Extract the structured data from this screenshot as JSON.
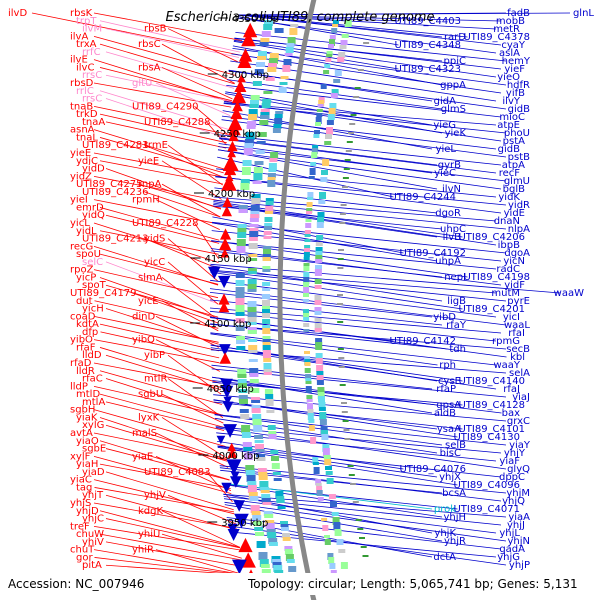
{
  "title": "Escherichia coli UTI89, complete genome",
  "footer": {
    "accession": "Accession: NC_007946",
    "stats": "Topology: circular; Length: 5,065,741 bp; Genes: 5,131"
  },
  "colors": {
    "forward": "#ff0000",
    "reverse": "#0000cc",
    "rna": "#ff88cc",
    "other": "#00bbcc",
    "backbone": "#888888"
  },
  "ticks": [
    "4350 kbp",
    "4300 kbp",
    "4250 kbp",
    "4200 kbp",
    "4150 kbp",
    "4100 kbp",
    "4050 kbp",
    "4000 kbp",
    "3950 kbp"
  ],
  "left_labels": [
    {
      "t": "ilvD",
      "c": "forward"
    },
    {
      "t": "rbsK",
      "c": "forward"
    },
    {
      "t": "trpT",
      "c": "rna"
    },
    {
      "t": "ilvM",
      "c": "rna"
    },
    {
      "t": "rbsB",
      "c": "forward"
    },
    {
      "t": "ilvA",
      "c": "forward"
    },
    {
      "t": "trxA",
      "c": "forward"
    },
    {
      "t": "rbsC",
      "c": "forward"
    },
    {
      "t": "rrfC",
      "c": "rna"
    },
    {
      "t": "ilvE",
      "c": "forward"
    },
    {
      "t": "ilvC",
      "c": "forward"
    },
    {
      "t": "rbsA",
      "c": "forward"
    },
    {
      "t": "rrsC",
      "c": "rna"
    },
    {
      "t": "rbsD",
      "c": "forward"
    },
    {
      "t": "gltU",
      "c": "rna"
    },
    {
      "t": "rrlC",
      "c": "rna"
    },
    {
      "t": "rrsC",
      "c": "rna"
    },
    {
      "t": "tnaB",
      "c": "forward"
    },
    {
      "t": "UTI89_C4290",
      "c": "forward"
    },
    {
      "t": "trkD",
      "c": "forward"
    },
    {
      "t": "tnaA",
      "c": "forward"
    },
    {
      "t": "UTI89_C4288",
      "c": "forward"
    },
    {
      "t": "asnA",
      "c": "forward"
    },
    {
      "t": "tnaL",
      "c": "forward"
    },
    {
      "t": "UTI89_C4283",
      "c": "forward"
    },
    {
      "t": "trmE",
      "c": "forward"
    },
    {
      "t": "yieE",
      "c": "forward"
    },
    {
      "t": "ydiC",
      "c": "forward"
    },
    {
      "t": "yieE",
      "c": "forward"
    },
    {
      "t": "yidD",
      "c": "forward"
    },
    {
      "t": "yidZ",
      "c": "forward"
    },
    {
      "t": "UTI89_C4275",
      "c": "forward"
    },
    {
      "t": "rnpA",
      "c": "forward"
    },
    {
      "t": "UTI89_C4236",
      "c": "forward"
    },
    {
      "t": "yieI",
      "c": "forward"
    },
    {
      "t": "rpmH",
      "c": "forward"
    },
    {
      "t": "emrD",
      "c": "forward"
    },
    {
      "t": "yidQ",
      "c": "forward"
    },
    {
      "t": "yicL",
      "c": "forward"
    },
    {
      "t": "UTI89_C4228",
      "c": "forward"
    },
    {
      "t": "yidL",
      "c": "forward"
    },
    {
      "t": "UTI89_C4213",
      "c": "forward"
    },
    {
      "t": "yidS",
      "c": "forward"
    },
    {
      "t": "recG",
      "c": "forward"
    },
    {
      "t": "spoU",
      "c": "forward"
    },
    {
      "t": "selC",
      "c": "rna"
    },
    {
      "t": "yicC",
      "c": "forward"
    },
    {
      "t": "rpoZ",
      "c": "forward"
    },
    {
      "t": "yicP",
      "c": "forward"
    },
    {
      "t": "slmA",
      "c": "forward"
    },
    {
      "t": "spoT",
      "c": "forward"
    },
    {
      "t": "UTI89_C4179",
      "c": "forward"
    },
    {
      "t": "dut",
      "c": "forward"
    },
    {
      "t": "yicE",
      "c": "forward"
    },
    {
      "t": "yicH",
      "c": "forward"
    },
    {
      "t": "coaD",
      "c": "forward"
    },
    {
      "t": "dinD",
      "c": "forward"
    },
    {
      "t": "kdtA",
      "c": "forward"
    },
    {
      "t": "dfp",
      "c": "forward"
    },
    {
      "t": "yibO",
      "c": "forward"
    },
    {
      "t": "yibQ",
      "c": "forward"
    },
    {
      "t": "rfaF",
      "c": "forward"
    },
    {
      "t": "lldD",
      "c": "forward"
    },
    {
      "t": "yibP",
      "c": "forward"
    },
    {
      "t": "rfaD",
      "c": "forward"
    },
    {
      "t": "lldR",
      "c": "forward"
    },
    {
      "t": "rfaC",
      "c": "forward"
    },
    {
      "t": "mtlR",
      "c": "forward"
    },
    {
      "t": "lldP",
      "c": "forward"
    },
    {
      "t": "mtlD",
      "c": "forward"
    },
    {
      "t": "sgbU",
      "c": "forward"
    },
    {
      "t": "mtlA",
      "c": "forward"
    },
    {
      "t": "sgbH",
      "c": "forward"
    },
    {
      "t": "yiaK",
      "c": "forward"
    },
    {
      "t": "lyxK",
      "c": "forward"
    },
    {
      "t": "xylG",
      "c": "forward"
    },
    {
      "t": "avtA",
      "c": "forward"
    },
    {
      "t": "malS",
      "c": "forward"
    },
    {
      "t": "yiaO",
      "c": "forward"
    },
    {
      "t": "sgbE",
      "c": "forward"
    },
    {
      "t": "xylF",
      "c": "forward"
    },
    {
      "t": "yiaE",
      "c": "forward"
    },
    {
      "t": "yiaH",
      "c": "forward"
    },
    {
      "t": "yiaD",
      "c": "forward"
    },
    {
      "t": "UTI89_C4083",
      "c": "forward"
    },
    {
      "t": "yiaC",
      "c": "forward"
    },
    {
      "t": "tag",
      "c": "forward"
    },
    {
      "t": "yhjT",
      "c": "forward"
    },
    {
      "t": "yhjV",
      "c": "forward"
    },
    {
      "t": "yhjS",
      "c": "forward"
    },
    {
      "t": "yhjD",
      "c": "forward"
    },
    {
      "t": "kdgK",
      "c": "forward"
    },
    {
      "t": "yhjC",
      "c": "forward"
    },
    {
      "t": "treF",
      "c": "forward"
    },
    {
      "t": "chuW",
      "c": "forward"
    },
    {
      "t": "yhiU",
      "c": "forward"
    },
    {
      "t": "yhiV",
      "c": "forward"
    },
    {
      "t": "chuT",
      "c": "forward"
    },
    {
      "t": "yhiR",
      "c": "forward"
    },
    {
      "t": "gor",
      "c": "forward"
    },
    {
      "t": "pitA",
      "c": "forward"
    }
  ],
  "right_labels": [
    {
      "t": "glnL",
      "c": "reverse"
    },
    {
      "t": "fadB",
      "c": "reverse"
    },
    {
      "t": "mobB",
      "c": "reverse"
    },
    {
      "t": "UTI89_C4403",
      "c": "reverse"
    },
    {
      "t": "metR",
      "c": "reverse"
    },
    {
      "t": "UTI89_C4378",
      "c": "reverse"
    },
    {
      "t": "rarD",
      "c": "reverse"
    },
    {
      "t": "cyaY",
      "c": "reverse"
    },
    {
      "t": "UTI89_C4348",
      "c": "reverse"
    },
    {
      "t": "aslA",
      "c": "reverse"
    },
    {
      "t": "hemY",
      "c": "reverse"
    },
    {
      "t": "ppiC",
      "c": "reverse"
    },
    {
      "t": "yieF",
      "c": "reverse"
    },
    {
      "t": "UTI89_C4323",
      "c": "reverse"
    },
    {
      "t": "yieO",
      "c": "reverse"
    },
    {
      "t": "hdfR",
      "c": "reverse"
    },
    {
      "t": "gppA",
      "c": "reverse"
    },
    {
      "t": "yifB",
      "c": "reverse"
    },
    {
      "t": "ilvY",
      "c": "reverse"
    },
    {
      "t": "gidA",
      "c": "reverse"
    },
    {
      "t": "gidB",
      "c": "reverse"
    },
    {
      "t": "glmS",
      "c": "reverse"
    },
    {
      "t": "mioC",
      "c": "reverse"
    },
    {
      "t": "atpE",
      "c": "reverse"
    },
    {
      "t": "yieG",
      "c": "reverse"
    },
    {
      "t": "phoU",
      "c": "reverse"
    },
    {
      "t": "yieK",
      "c": "reverse"
    },
    {
      "t": "pstA",
      "c": "reverse"
    },
    {
      "t": "gidB",
      "c": "reverse"
    },
    {
      "t": "yieL",
      "c": "reverse"
    },
    {
      "t": "pstB",
      "c": "reverse"
    },
    {
      "t": "atpA",
      "c": "reverse"
    },
    {
      "t": "gyrB",
      "c": "reverse"
    },
    {
      "t": "recF",
      "c": "reverse"
    },
    {
      "t": "yieC",
      "c": "reverse"
    },
    {
      "t": "glmU",
      "c": "reverse"
    },
    {
      "t": "bglB",
      "c": "reverse"
    },
    {
      "t": "ilvN",
      "c": "reverse"
    },
    {
      "t": "yidK",
      "c": "reverse"
    },
    {
      "t": "UTI89_C4244",
      "c": "reverse"
    },
    {
      "t": "yidR",
      "c": "reverse"
    },
    {
      "t": "yidE",
      "c": "reverse"
    },
    {
      "t": "dgoR",
      "c": "reverse"
    },
    {
      "t": "dnaN",
      "c": "reverse"
    },
    {
      "t": "nlpA",
      "c": "reverse"
    },
    {
      "t": "uhpC",
      "c": "reverse"
    },
    {
      "t": "UTI89_C4206",
      "c": "reverse"
    },
    {
      "t": "ilvB",
      "c": "reverse"
    },
    {
      "t": "ibpB",
      "c": "reverse"
    },
    {
      "t": "dgoA",
      "c": "reverse"
    },
    {
      "t": "UTI89_C4192",
      "c": "reverse"
    },
    {
      "t": "yicN",
      "c": "reverse"
    },
    {
      "t": "uhpA",
      "c": "reverse"
    },
    {
      "t": "radC",
      "c": "reverse"
    },
    {
      "t": "UTI89_C4198",
      "c": "reverse"
    },
    {
      "t": "nepI",
      "c": "reverse"
    },
    {
      "t": "yidF",
      "c": "reverse"
    },
    {
      "t": "waaW",
      "c": "reverse"
    },
    {
      "t": "mutM",
      "c": "reverse"
    },
    {
      "t": "pyrE",
      "c": "reverse"
    },
    {
      "t": "ligB",
      "c": "reverse"
    },
    {
      "t": "UTI89_C4201",
      "c": "reverse"
    },
    {
      "t": "yicI",
      "c": "reverse"
    },
    {
      "t": "yibD",
      "c": "reverse"
    },
    {
      "t": "waaL",
      "c": "reverse"
    },
    {
      "t": "rfaY",
      "c": "reverse"
    },
    {
      "t": "rfaI",
      "c": "reverse"
    },
    {
      "t": "rpmG",
      "c": "reverse"
    },
    {
      "t": "UTI89_C4142",
      "c": "reverse"
    },
    {
      "t": "secB",
      "c": "reverse"
    },
    {
      "t": "tdh",
      "c": "reverse"
    },
    {
      "t": "kbl",
      "c": "reverse"
    },
    {
      "t": "waaY",
      "c": "reverse"
    },
    {
      "t": "rph",
      "c": "reverse"
    },
    {
      "t": "selA",
      "c": "reverse"
    },
    {
      "t": "UTI89_C4140",
      "c": "reverse"
    },
    {
      "t": "cysE",
      "c": "reverse"
    },
    {
      "t": "rfaJ",
      "c": "reverse"
    },
    {
      "t": "rfaP",
      "c": "reverse"
    },
    {
      "t": "yiaJ",
      "c": "reverse"
    },
    {
      "t": "UTI89_C4128",
      "c": "reverse"
    },
    {
      "t": "gpsA",
      "c": "reverse"
    },
    {
      "t": "bax",
      "c": "reverse"
    },
    {
      "t": "aldB",
      "c": "reverse"
    },
    {
      "t": "grxC",
      "c": "reverse"
    },
    {
      "t": "UTI89_C4101",
      "c": "reverse"
    },
    {
      "t": "ysaA",
      "c": "reverse"
    },
    {
      "t": "UTI89_C4130",
      "c": "reverse"
    },
    {
      "t": "yiaY",
      "c": "reverse"
    },
    {
      "t": "selB",
      "c": "reverse"
    },
    {
      "t": "yhjY",
      "c": "reverse"
    },
    {
      "t": "bisC",
      "c": "reverse"
    },
    {
      "t": "yiaF",
      "c": "reverse"
    },
    {
      "t": "glyQ",
      "c": "reverse"
    },
    {
      "t": "UTI89_C4076",
      "c": "reverse"
    },
    {
      "t": "dppC",
      "c": "reverse"
    },
    {
      "t": "yhjX",
      "c": "reverse"
    },
    {
      "t": "UTI89_C4096",
      "c": "reverse"
    },
    {
      "t": "yhjM",
      "c": "reverse"
    },
    {
      "t": "bcsA",
      "c": "reverse"
    },
    {
      "t": "yhjQ",
      "c": "reverse"
    },
    {
      "t": "UTI89_C4071",
      "c": "reverse"
    },
    {
      "t": "prok",
      "c": "other"
    },
    {
      "t": "yiaA",
      "c": "reverse"
    },
    {
      "t": "yhjH",
      "c": "reverse"
    },
    {
      "t": "yhjJ",
      "c": "reverse"
    },
    {
      "t": "yhjL",
      "c": "reverse"
    },
    {
      "t": "yhjK",
      "c": "reverse"
    },
    {
      "t": "yhjN",
      "c": "reverse"
    },
    {
      "t": "yhjR",
      "c": "reverse"
    },
    {
      "t": "gadA",
      "c": "reverse"
    },
    {
      "t": "yhjG",
      "c": "reverse"
    },
    {
      "t": "dctA",
      "c": "reverse"
    },
    {
      "t": "yhjP",
      "c": "reverse"
    }
  ]
}
